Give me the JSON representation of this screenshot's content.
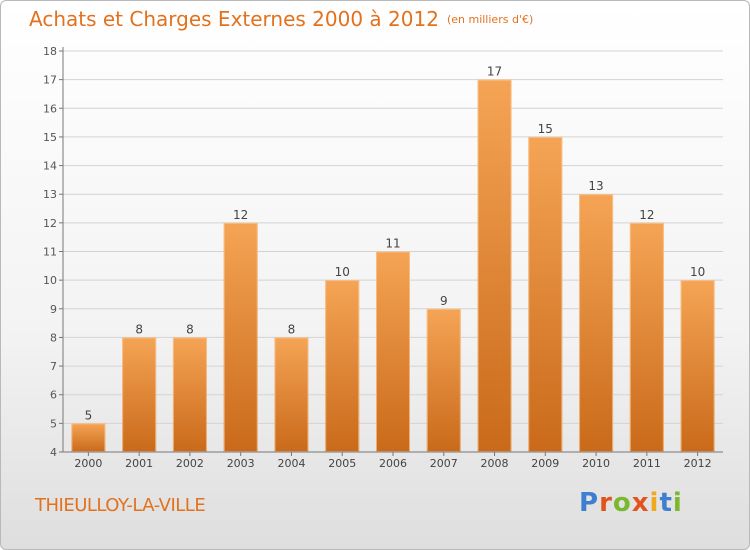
{
  "header": {
    "title": "Achats et Charges Externes 2000 à 2012",
    "unit": "(en milliers d'€)"
  },
  "footer": {
    "town": "THIEULLOY-LA-VILLE",
    "logo": "Proxiti"
  },
  "colors": {
    "bar_light": "#f5a455",
    "bar_dark": "#c96a1a",
    "title": "#e2721e",
    "grid": "#d3d3d3"
  },
  "chart_data": {
    "type": "bar",
    "categories": [
      "2000",
      "2001",
      "2002",
      "2003",
      "2004",
      "2005",
      "2006",
      "2007",
      "2008",
      "2009",
      "2010",
      "2011",
      "2012"
    ],
    "values": [
      5,
      8,
      8,
      12,
      8,
      10,
      11,
      9,
      17,
      15,
      13,
      12,
      10
    ],
    "ylim": [
      4,
      18
    ],
    "yticks": [
      4,
      5,
      6,
      7,
      8,
      9,
      10,
      11,
      12,
      13,
      14,
      15,
      16,
      17,
      18
    ],
    "grid": true,
    "data_labels": true
  }
}
